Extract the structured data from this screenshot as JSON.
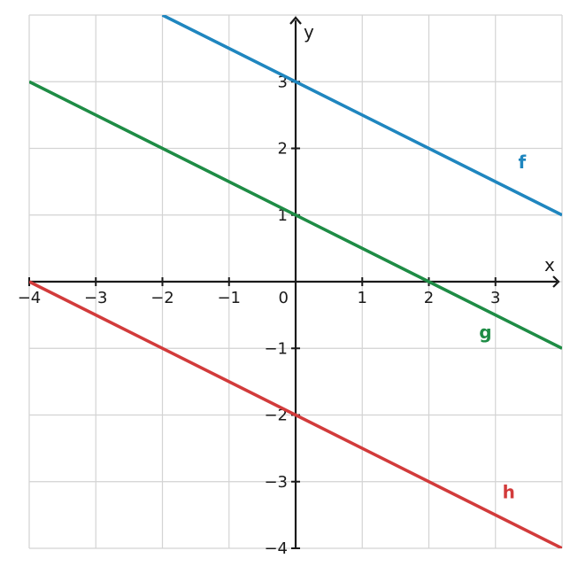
{
  "chart_data": {
    "type": "line",
    "title": "",
    "xlabel": "x",
    "ylabel": "y",
    "xlim": [
      -4,
      4
    ],
    "ylim": [
      -4,
      4
    ],
    "x_ticks": [
      -4,
      -3,
      -2,
      -1,
      0,
      1,
      2,
      3
    ],
    "y_ticks": [
      -4,
      -3,
      -2,
      -1,
      1,
      2,
      3
    ],
    "x_tick_labels": [
      "−4",
      "−3",
      "−2",
      "−1",
      "0",
      "1",
      "2",
      "3"
    ],
    "y_tick_labels": [
      "−4",
      "−3",
      "−2",
      "−1",
      "1",
      "2",
      "3"
    ],
    "grid": true,
    "series": [
      {
        "name": "f",
        "color": "#1f86bf",
        "points": [
          [
            -2,
            4
          ],
          [
            4,
            1
          ]
        ],
        "label_at": [
          3.4,
          1.7
        ]
      },
      {
        "name": "g",
        "color": "#1e8c45",
        "points": [
          [
            -4,
            3
          ],
          [
            4,
            -1
          ]
        ],
        "label_at": [
          2.85,
          -0.85
        ]
      },
      {
        "name": "h",
        "color": "#d23b3b",
        "points": [
          [
            -4,
            0
          ],
          [
            4,
            -4
          ]
        ],
        "label_at": [
          3.2,
          -3.25
        ]
      }
    ]
  }
}
